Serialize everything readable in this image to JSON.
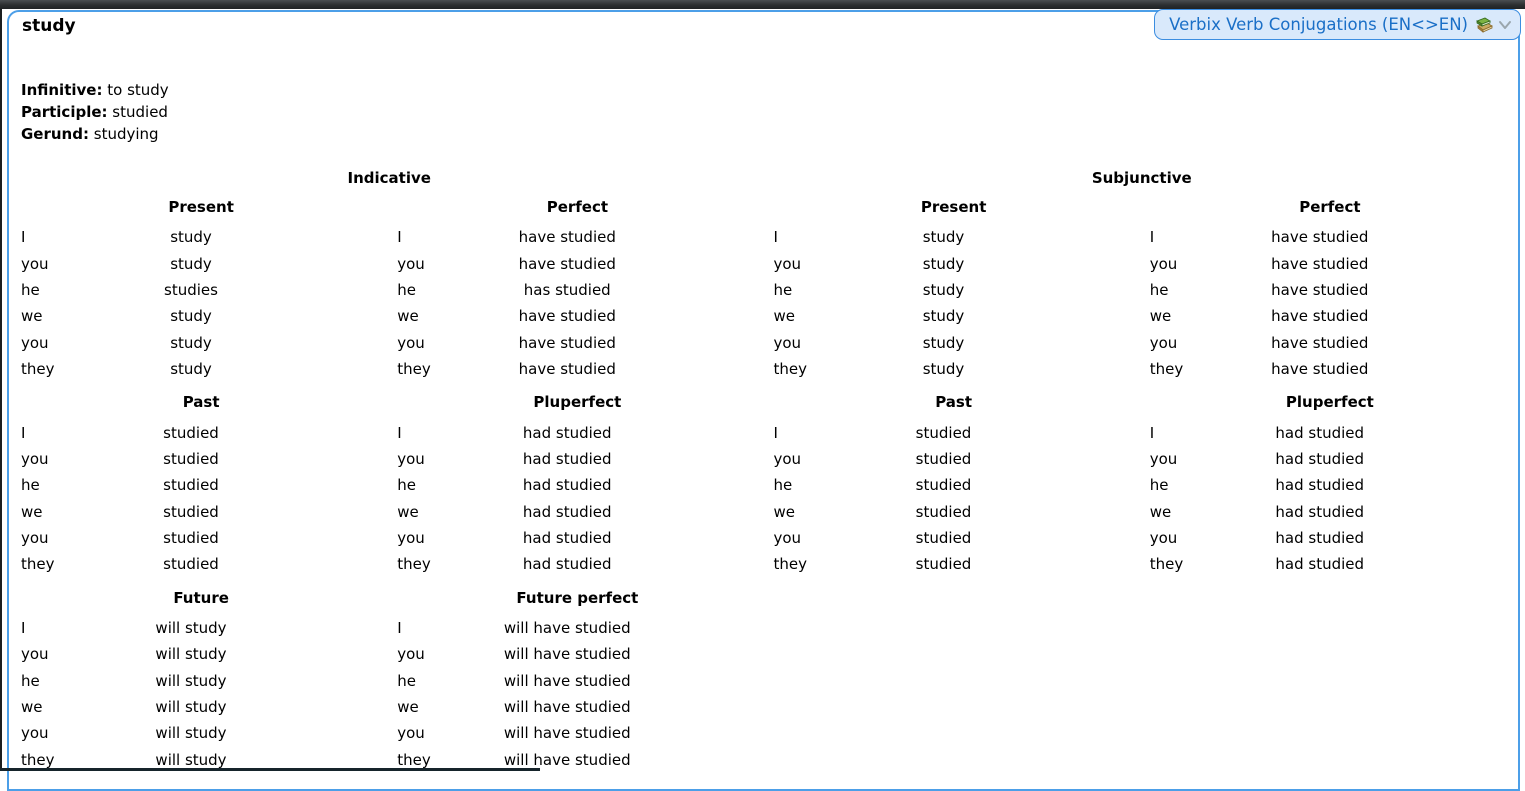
{
  "window": {
    "tab_title": "Verbix Verb Conjugations (EN<>EN)"
  },
  "verb": {
    "headword": "study",
    "infinitive_label": "Infinitive:",
    "infinitive": "to study",
    "participle_label": "Participle:",
    "participle": "studied",
    "gerund_label": "Gerund:",
    "gerund": "studying"
  },
  "pronouns": [
    "I",
    "you",
    "he",
    "we",
    "you",
    "they"
  ],
  "moods": [
    {
      "name": "Indicative",
      "tenses": [
        {
          "name": "Present",
          "forms": [
            "study",
            "study",
            "studies",
            "study",
            "study",
            "study"
          ]
        },
        {
          "name": "Perfect",
          "forms": [
            "have studied",
            "have studied",
            "has studied",
            "have studied",
            "have studied",
            "have studied"
          ]
        },
        {
          "name": "Past",
          "forms": [
            "studied",
            "studied",
            "studied",
            "studied",
            "studied",
            "studied"
          ]
        },
        {
          "name": "Pluperfect",
          "forms": [
            "had studied",
            "had studied",
            "had studied",
            "had studied",
            "had studied",
            "had studied"
          ]
        },
        {
          "name": "Future",
          "forms": [
            "will study",
            "will study",
            "will study",
            "will study",
            "will study",
            "will study"
          ]
        },
        {
          "name": "Future perfect",
          "forms": [
            "will have studied",
            "will have studied",
            "will have studied",
            "will have studied",
            "will have studied",
            "will have studied"
          ]
        }
      ]
    },
    {
      "name": "Subjunctive",
      "tenses": [
        {
          "name": "Present",
          "forms": [
            "study",
            "study",
            "study",
            "study",
            "study",
            "study"
          ]
        },
        {
          "name": "Perfect",
          "forms": [
            "have studied",
            "have studied",
            "have studied",
            "have studied",
            "have studied",
            "have studied"
          ]
        },
        {
          "name": "Past",
          "forms": [
            "studied",
            "studied",
            "studied",
            "studied",
            "studied",
            "studied"
          ]
        },
        {
          "name": "Pluperfect",
          "forms": [
            "had studied",
            "had studied",
            "had studied",
            "had studied",
            "had studied",
            "had studied"
          ]
        }
      ]
    }
  ],
  "colors": {
    "panel_border": "#4c9fe8",
    "tab_background": "#d9e9fb",
    "tab_border": "#3b8de0",
    "tab_text": "#1a6fc7",
    "chrome_edge": "#2c2f31",
    "text": "#000000"
  }
}
